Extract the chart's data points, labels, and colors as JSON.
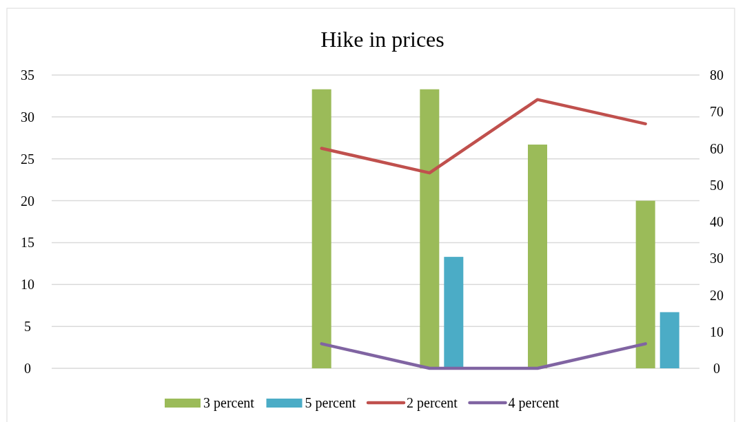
{
  "chart_data": {
    "type": "bar",
    "title": "Hike in prices",
    "categories": [
      null,
      null,
      null,
      null,
      null,
      null
    ],
    "series": [
      {
        "name": "3 percent",
        "color": "#9bbb59",
        "values": [
          null,
          null,
          33.3,
          33.3,
          26.7,
          20
        ]
      },
      {
        "name": "5 percent",
        "color": "#4bacc6",
        "values": [
          null,
          null,
          null,
          13.3,
          null,
          6.7
        ]
      },
      {
        "name": "2 percent",
        "type": "line",
        "axis": "y2",
        "color": "#c0504d",
        "values": [
          null,
          null,
          60,
          53.3,
          73.3,
          66.7
        ]
      },
      {
        "name": "4 percent",
        "type": "line",
        "axis": "y2",
        "color": "#8064a2",
        "values": [
          null,
          null,
          6.7,
          0,
          0,
          6.7
        ]
      }
    ],
    "ylim": [
      0,
      35
    ],
    "yticks": [
      0,
      5,
      10,
      15,
      20,
      25,
      30,
      35
    ],
    "y2lim": [
      0,
      80
    ],
    "y2ticks": [
      0,
      10,
      20,
      30,
      40,
      50,
      60,
      70,
      80
    ],
    "grid": "y",
    "legend": "bottom"
  }
}
